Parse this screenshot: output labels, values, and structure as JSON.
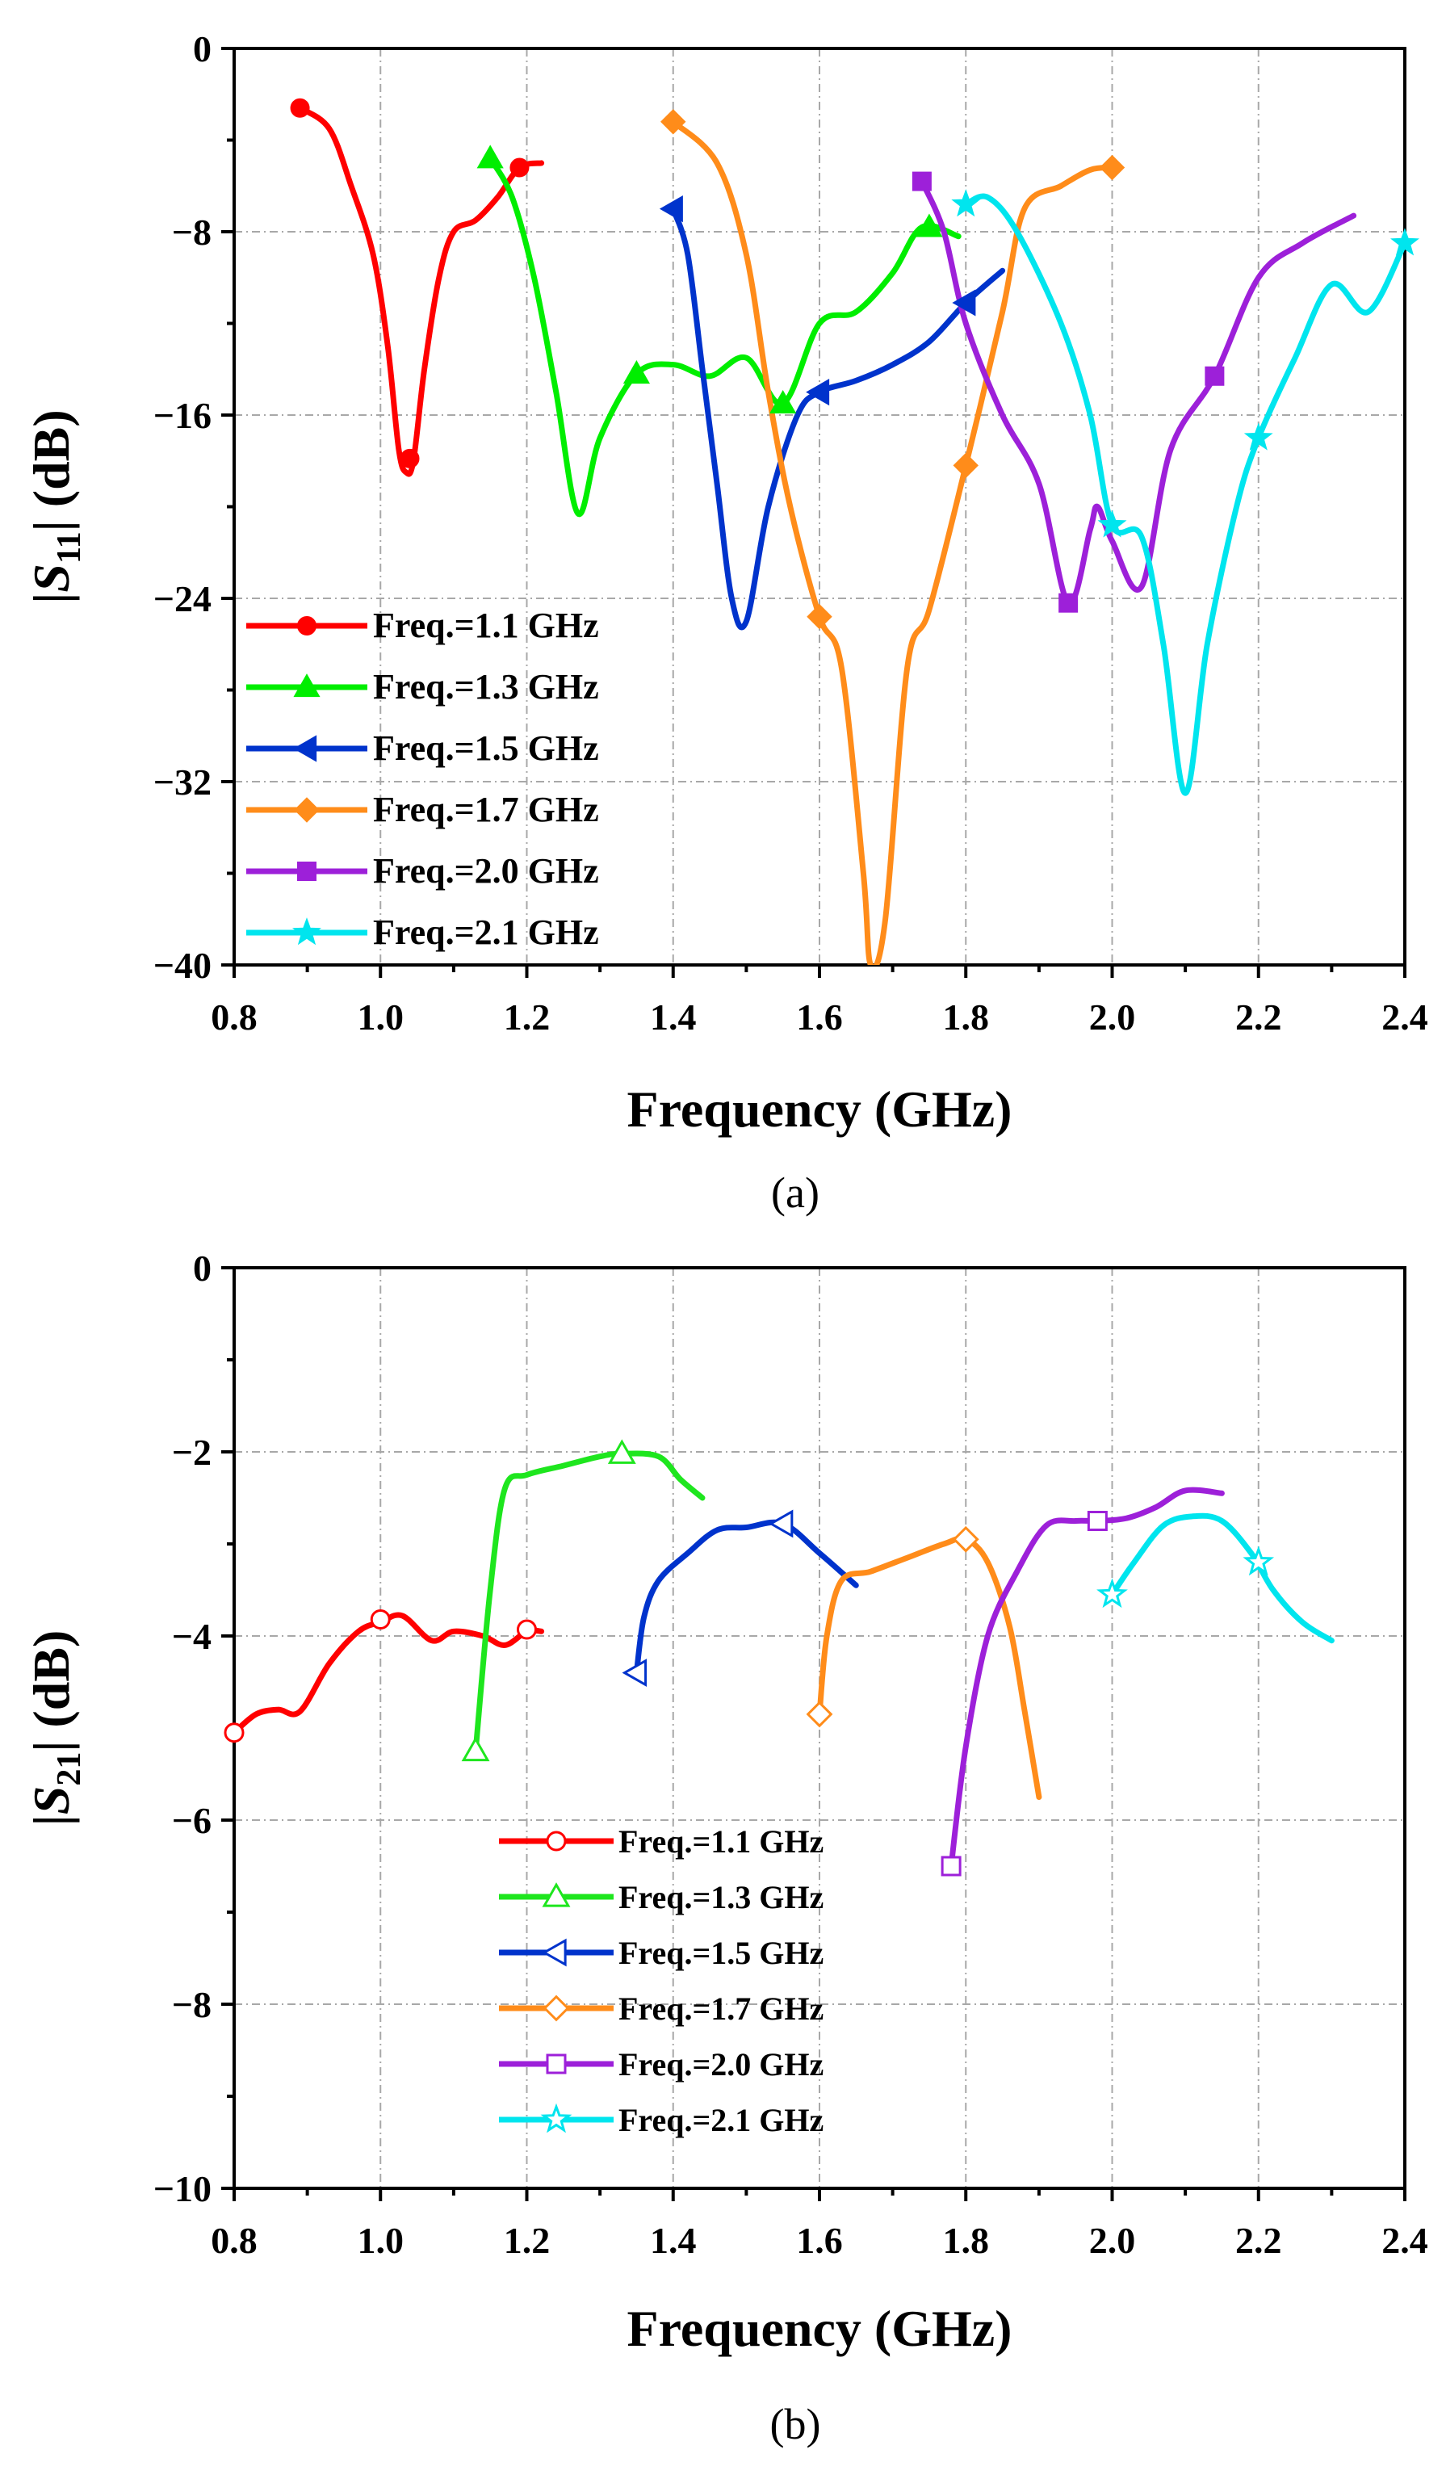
{
  "chart_data": [
    {
      "id": "a",
      "type": "line",
      "caption": "(a)",
      "xlabel": "Frequency (GHz)",
      "ylabel_parts": [
        "|",
        "S",
        "11",
        "| (dB)"
      ],
      "xlim": [
        0.8,
        2.4
      ],
      "ylim": [
        -40,
        0
      ],
      "xticks": [
        0.8,
        1.0,
        1.2,
        1.4,
        1.6,
        1.8,
        2.0,
        2.2,
        2.4
      ],
      "xtick_labels": [
        "0.8",
        "1.0",
        "1.2",
        "1.4",
        "1.6",
        "1.8",
        "2.0",
        "2.2",
        "2.4"
      ],
      "yticks": [
        0,
        -8,
        -16,
        -24,
        -32,
        -40
      ],
      "ytick_labels": [
        "0",
        "−8",
        "−16",
        "−24",
        "−32",
        "−40"
      ],
      "grid": true,
      "legend_position": "lower-left",
      "series": [
        {
          "name": "Freq.=1.1 GHz",
          "color": "#ff0000",
          "marker": "circle",
          "filled": true,
          "points": [
            [
              0.89,
              -2.6
            ],
            [
              0.93,
              -3.5
            ],
            [
              0.96,
              -6
            ],
            [
              0.99,
              -9
            ],
            [
              1.01,
              -13
            ],
            [
              1.025,
              -17.5
            ],
            [
              1.035,
              -18.5
            ],
            [
              1.045,
              -18
            ],
            [
              1.06,
              -14
            ],
            [
              1.08,
              -10
            ],
            [
              1.1,
              -8
            ],
            [
              1.13,
              -7.5
            ],
            [
              1.16,
              -6.5
            ],
            [
              1.19,
              -5.2
            ],
            [
              1.22,
              -5
            ]
          ],
          "markers": [
            [
              0.89,
              -2.6
            ],
            [
              1.04,
              -17.9
            ],
            [
              1.19,
              -5.2
            ]
          ]
        },
        {
          "name": "Freq.=1.3 GHz",
          "color": "#00ee00",
          "marker": "triangle",
          "filled": true,
          "points": [
            [
              1.15,
              -4.8
            ],
            [
              1.18,
              -6.5
            ],
            [
              1.21,
              -10
            ],
            [
              1.24,
              -15
            ],
            [
              1.27,
              -20.3
            ],
            [
              1.3,
              -17
            ],
            [
              1.35,
              -14.2
            ],
            [
              1.4,
              -13.8
            ],
            [
              1.45,
              -14.3
            ],
            [
              1.5,
              -13.5
            ],
            [
              1.55,
              -15.5
            ],
            [
              1.6,
              -12
            ],
            [
              1.65,
              -11.5
            ],
            [
              1.7,
              -9.8
            ],
            [
              1.74,
              -7.8
            ],
            [
              1.79,
              -8.2
            ]
          ],
          "markers": [
            [
              1.15,
              -4.8
            ],
            [
              1.35,
              -14.2
            ],
            [
              1.55,
              -15.5
            ],
            [
              1.75,
              -7.8
            ]
          ]
        },
        {
          "name": "Freq.=1.5 GHz",
          "color": "#0033cc",
          "marker": "triangle-left",
          "filled": true,
          "points": [
            [
              1.4,
              -7
            ],
            [
              1.42,
              -9
            ],
            [
              1.44,
              -14
            ],
            [
              1.46,
              -19
            ],
            [
              1.48,
              -24
            ],
            [
              1.5,
              -25
            ],
            [
              1.53,
              -20
            ],
            [
              1.57,
              -16
            ],
            [
              1.6,
              -15
            ],
            [
              1.65,
              -14.5
            ],
            [
              1.7,
              -13.8
            ],
            [
              1.75,
              -12.8
            ],
            [
              1.8,
              -11.1
            ],
            [
              1.85,
              -9.7
            ]
          ],
          "markers": [
            [
              1.4,
              -7
            ],
            [
              1.6,
              -15
            ],
            [
              1.8,
              -11.1
            ]
          ]
        },
        {
          "name": "Freq.=1.7 GHz",
          "color": "#ff8c1a",
          "marker": "diamond",
          "filled": true,
          "points": [
            [
              1.4,
              -3.2
            ],
            [
              1.46,
              -5
            ],
            [
              1.5,
              -9
            ],
            [
              1.53,
              -15
            ],
            [
              1.56,
              -20
            ],
            [
              1.6,
              -24.8
            ],
            [
              1.63,
              -27
            ],
            [
              1.66,
              -36
            ],
            [
              1.67,
              -40
            ],
            [
              1.69,
              -38
            ],
            [
              1.72,
              -27
            ],
            [
              1.75,
              -24.5
            ],
            [
              1.8,
              -18.2
            ],
            [
              1.85,
              -11.5
            ],
            [
              1.88,
              -7
            ],
            [
              1.93,
              -6
            ],
            [
              1.97,
              -5.3
            ],
            [
              2.0,
              -5.2
            ]
          ],
          "markers": [
            [
              1.4,
              -3.2
            ],
            [
              1.6,
              -24.8
            ],
            [
              1.8,
              -18.2
            ],
            [
              2.0,
              -5.2
            ]
          ]
        },
        {
          "name": "Freq.=2.0 GHz",
          "color": "#9d20d9",
          "marker": "square",
          "filled": true,
          "points": [
            [
              1.74,
              -5.8
            ],
            [
              1.77,
              -8
            ],
            [
              1.8,
              -12
            ],
            [
              1.85,
              -16
            ],
            [
              1.9,
              -19
            ],
            [
              1.94,
              -24.2
            ],
            [
              1.97,
              -21
            ],
            [
              1.98,
              -20
            ],
            [
              2.0,
              -21.5
            ],
            [
              2.04,
              -23.5
            ],
            [
              2.08,
              -17.5
            ],
            [
              2.14,
              -14.3
            ],
            [
              2.2,
              -10
            ],
            [
              2.26,
              -8.5
            ],
            [
              2.33,
              -7.3
            ]
          ],
          "markers": [
            [
              1.74,
              -5.8
            ],
            [
              1.94,
              -24.2
            ],
            [
              2.14,
              -14.3
            ]
          ]
        },
        {
          "name": "Freq.=2.1 GHz",
          "color": "#00e5ee",
          "marker": "star",
          "filled": true,
          "points": [
            [
              1.8,
              -6.8
            ],
            [
              1.83,
              -6.5
            ],
            [
              1.87,
              -8
            ],
            [
              1.93,
              -12
            ],
            [
              1.97,
              -16
            ],
            [
              2.0,
              -20.8
            ],
            [
              2.04,
              -21.3
            ],
            [
              2.07,
              -26
            ],
            [
              2.1,
              -32.5
            ],
            [
              2.13,
              -26
            ],
            [
              2.17,
              -20
            ],
            [
              2.2,
              -17
            ],
            [
              2.25,
              -13.5
            ],
            [
              2.3,
              -10.3
            ],
            [
              2.35,
              -11.5
            ],
            [
              2.4,
              -8.5
            ]
          ],
          "markers": [
            [
              1.8,
              -6.8
            ],
            [
              2.0,
              -20.8
            ],
            [
              2.2,
              -17
            ],
            [
              2.4,
              -8.5
            ]
          ]
        }
      ]
    },
    {
      "id": "b",
      "type": "line",
      "caption": "(b)",
      "xlabel": "Frequency (GHz)",
      "ylabel_parts": [
        "|",
        "S",
        "21",
        "| (dB)"
      ],
      "xlim": [
        0.8,
        2.4
      ],
      "ylim": [
        -10,
        0
      ],
      "xticks": [
        0.8,
        1.0,
        1.2,
        1.4,
        1.6,
        1.8,
        2.0,
        2.2,
        2.4
      ],
      "xtick_labels": [
        "0.8",
        "1.0",
        "1.2",
        "1.4",
        "1.6",
        "1.8",
        "2.0",
        "2.2",
        "2.4"
      ],
      "yticks": [
        0,
        -2,
        -4,
        -6,
        -8,
        -10
      ],
      "ytick_labels": [
        "0",
        "−2",
        "−4",
        "−6",
        "−8",
        "−10"
      ],
      "grid": true,
      "legend_position": "lower-center",
      "series": [
        {
          "name": "Freq.=1.1 GHz",
          "color": "#ff0000",
          "marker": "circle",
          "filled": false,
          "points": [
            [
              0.8,
              -5.05
            ],
            [
              0.83,
              -4.85
            ],
            [
              0.86,
              -4.8
            ],
            [
              0.89,
              -4.82
            ],
            [
              0.93,
              -4.3
            ],
            [
              0.97,
              -3.95
            ],
            [
              1.0,
              -3.85
            ],
            [
              1.03,
              -3.78
            ],
            [
              1.07,
              -4.05
            ],
            [
              1.1,
              -3.95
            ],
            [
              1.14,
              -4.0
            ],
            [
              1.17,
              -4.1
            ],
            [
              1.2,
              -3.95
            ],
            [
              1.22,
              -3.95
            ]
          ],
          "markers": [
            [
              0.8,
              -5.05
            ],
            [
              1.0,
              -3.82
            ],
            [
              1.2,
              -3.93
            ]
          ]
        },
        {
          "name": "Freq.=1.3 GHz",
          "color": "#1ee61e",
          "marker": "triangle",
          "filled": false,
          "points": [
            [
              1.13,
              -5.25
            ],
            [
              1.15,
              -3.5
            ],
            [
              1.17,
              -2.4
            ],
            [
              1.2,
              -2.25
            ],
            [
              1.25,
              -2.15
            ],
            [
              1.3,
              -2.05
            ],
            [
              1.33,
              -2.02
            ],
            [
              1.38,
              -2.05
            ],
            [
              1.41,
              -2.3
            ],
            [
              1.44,
              -2.5
            ]
          ],
          "markers": [
            [
              1.13,
              -5.25
            ],
            [
              1.33,
              -2.02
            ]
          ]
        },
        {
          "name": "Freq.=1.5 GHz",
          "color": "#0033cc",
          "marker": "triangle-left",
          "filled": false,
          "points": [
            [
              1.35,
              -4.4
            ],
            [
              1.36,
              -3.8
            ],
            [
              1.38,
              -3.4
            ],
            [
              1.42,
              -3.1
            ],
            [
              1.46,
              -2.85
            ],
            [
              1.5,
              -2.82
            ],
            [
              1.55,
              -2.78
            ],
            [
              1.6,
              -3.1
            ],
            [
              1.65,
              -3.45
            ]
          ],
          "markers": [
            [
              1.35,
              -4.4
            ],
            [
              1.55,
              -2.78
            ]
          ]
        },
        {
          "name": "Freq.=1.7 GHz",
          "color": "#ff8c1a",
          "marker": "diamond",
          "filled": false,
          "points": [
            [
              1.6,
              -4.85
            ],
            [
              1.61,
              -4.0
            ],
            [
              1.63,
              -3.4
            ],
            [
              1.67,
              -3.3
            ],
            [
              1.72,
              -3.15
            ],
            [
              1.77,
              -3.0
            ],
            [
              1.8,
              -2.95
            ],
            [
              1.83,
              -3.2
            ],
            [
              1.86,
              -3.9
            ],
            [
              1.88,
              -4.8
            ],
            [
              1.9,
              -5.75
            ]
          ],
          "markers": [
            [
              1.6,
              -4.85
            ],
            [
              1.8,
              -2.95
            ]
          ]
        },
        {
          "name": "Freq.=2.0 GHz",
          "color": "#9d20d9",
          "marker": "square",
          "filled": false,
          "points": [
            [
              1.78,
              -6.5
            ],
            [
              1.8,
              -5.2
            ],
            [
              1.83,
              -4.0
            ],
            [
              1.87,
              -3.3
            ],
            [
              1.91,
              -2.8
            ],
            [
              1.95,
              -2.75
            ],
            [
              1.98,
              -2.75
            ],
            [
              2.02,
              -2.72
            ],
            [
              2.06,
              -2.6
            ],
            [
              2.1,
              -2.42
            ],
            [
              2.15,
              -2.45
            ]
          ],
          "markers": [
            [
              1.78,
              -6.5
            ],
            [
              1.98,
              -2.75
            ]
          ]
        },
        {
          "name": "Freq.=2.1 GHz",
          "color": "#00e5ee",
          "marker": "star",
          "filled": false,
          "points": [
            [
              2.0,
              -3.55
            ],
            [
              2.03,
              -3.2
            ],
            [
              2.07,
              -2.8
            ],
            [
              2.11,
              -2.7
            ],
            [
              2.15,
              -2.75
            ],
            [
              2.19,
              -3.1
            ],
            [
              2.22,
              -3.5
            ],
            [
              2.26,
              -3.85
            ],
            [
              2.3,
              -4.05
            ]
          ],
          "markers": [
            [
              2.0,
              -3.55
            ],
            [
              2.2,
              -3.2
            ]
          ]
        }
      ]
    }
  ]
}
